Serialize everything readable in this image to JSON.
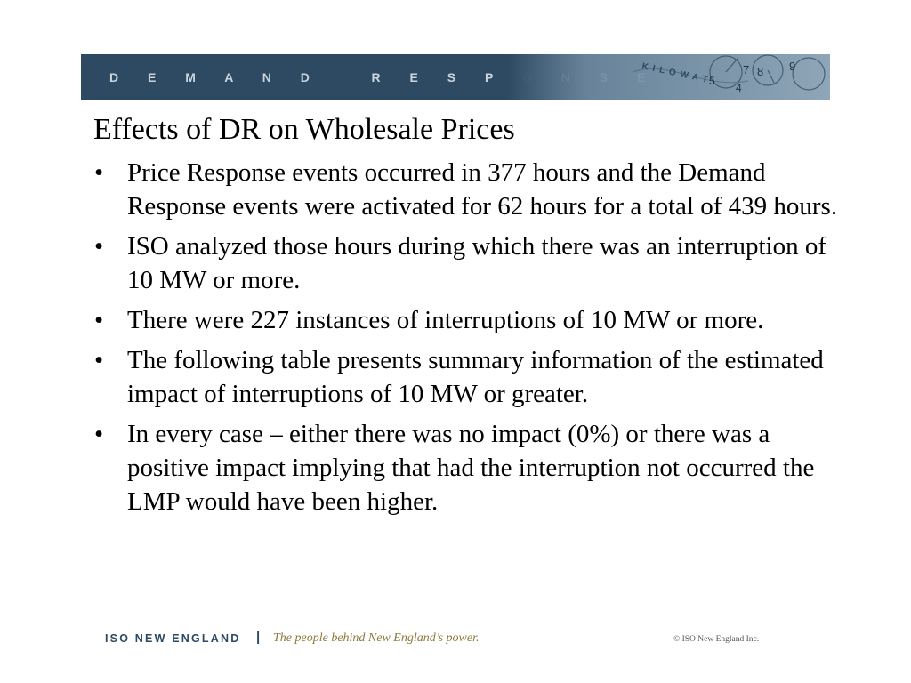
{
  "header": {
    "banner_title": "D E M A N D   R E S P O N S E",
    "banner_color": "#2e4a63",
    "banner_art_text": "KILOWAT",
    "banner_art_digits": [
      "7",
      "8",
      "9",
      "5",
      "4"
    ]
  },
  "slide": {
    "title": "Effects of DR on Wholesale Prices",
    "bullet_char": "•",
    "bullets": [
      {
        "text": "Price Response events occurred in 377 hours and the Demand Response events were activated for 62 hours for a total of 439 hours."
      },
      {
        "text": "ISO analyzed those hours during which there was an interruption of 10 MW or more."
      },
      {
        "text": "There were 227 instances of interruptions of 10 MW or more."
      },
      {
        "text": "The following table presents summary information of the estimated impact of interruptions of 10 MW or greater."
      },
      {
        "text": "In every case – either there was no impact (0%) or there was a positive impact implying that had the interruption not occurred the LMP would have been higher."
      }
    ]
  },
  "footer": {
    "brand": "ISO NEW ENGLAND",
    "separator": "|",
    "tagline": "The people behind New England’s power.",
    "copyright": "© ISO New England Inc.",
    "brand_color": "#2e4a63",
    "tagline_color": "#8a7a3a"
  }
}
